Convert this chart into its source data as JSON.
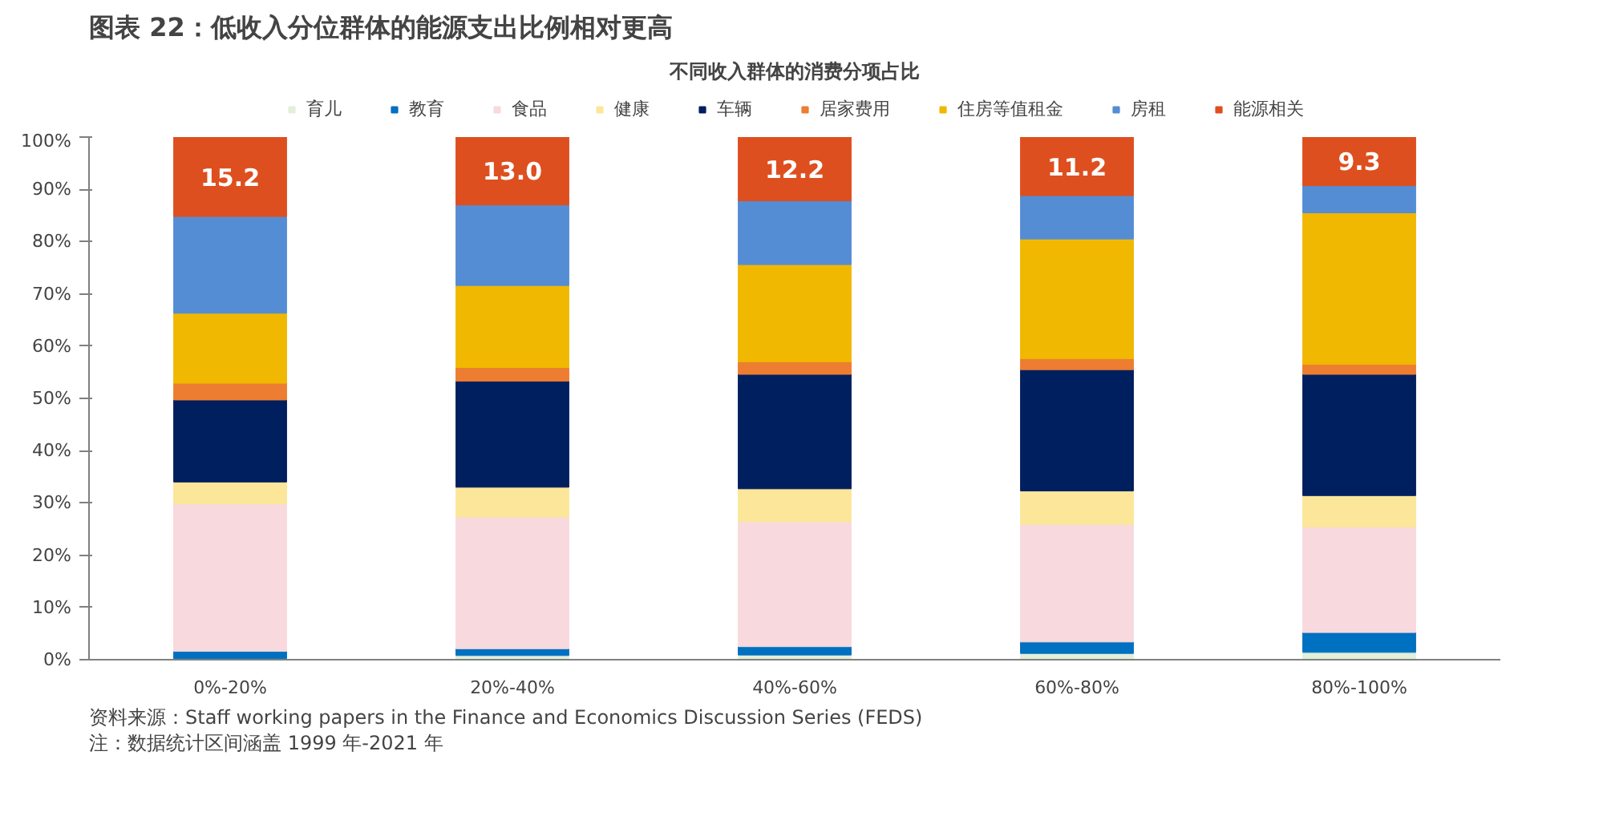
{
  "chart_data": {
    "type": "bar",
    "stacked": true,
    "title": "图表 22：低收入分位群体的能源支出比例相对更高",
    "subtitle": "不同收入群体的消费分项占比",
    "categories": [
      "0%-20%",
      "20%-40%",
      "40%-60%",
      "60%-80%",
      "80%-100%"
    ],
    "series": [
      {
        "name": "育儿",
        "color": "#e2efda",
        "values": [
          0.2,
          0.8,
          0.9,
          1.2,
          1.4
        ]
      },
      {
        "name": "教育",
        "color": "#0070c0",
        "values": [
          1.4,
          1.3,
          1.6,
          2.2,
          3.8
        ]
      },
      {
        "name": "食品",
        "color": "#f8d9de",
        "values": [
          28.2,
          25.2,
          23.9,
          22.5,
          20.2
        ]
      },
      {
        "name": "健康",
        "color": "#fce699",
        "values": [
          4.2,
          5.7,
          6.3,
          6.4,
          6.0
        ]
      },
      {
        "name": "车辆",
        "color": "#001f5f",
        "values": [
          15.7,
          20.3,
          21.9,
          23.2,
          23.2
        ]
      },
      {
        "name": "居家费用",
        "color": "#ed7d31",
        "values": [
          3.2,
          2.6,
          2.4,
          2.1,
          1.9
        ]
      },
      {
        "name": "住房等值租金",
        "color": "#f0b800",
        "values": [
          13.4,
          15.7,
          18.6,
          22.9,
          29.0
        ]
      },
      {
        "name": "房租",
        "color": "#548dd4",
        "values": [
          18.5,
          15.4,
          12.2,
          8.3,
          5.2
        ]
      },
      {
        "name": "能源相关",
        "color": "#de4f1f",
        "values": [
          15.2,
          13.0,
          12.2,
          11.2,
          9.3
        ],
        "value_labels": [
          "15.2",
          "13.0",
          "12.2",
          "11.2",
          "9.3"
        ]
      }
    ],
    "ylim": [
      0,
      100
    ],
    "yticks": [
      {
        "value": 0,
        "label": "0%"
      },
      {
        "value": 10,
        "label": "10%"
      },
      {
        "value": 20,
        "label": "20%"
      },
      {
        "value": 30,
        "label": "30%"
      },
      {
        "value": 40,
        "label": "40%"
      },
      {
        "value": 50,
        "label": "50%"
      },
      {
        "value": 60,
        "label": "60%"
      },
      {
        "value": 70,
        "label": "70%"
      },
      {
        "value": 80,
        "label": "80%"
      },
      {
        "value": 90,
        "label": "90%"
      },
      {
        "value": 100,
        "label": "100%"
      }
    ],
    "grid": false,
    "legend": "top",
    "annotations": [
      "资料来源：Staff working papers in the Finance and Economics Discussion Series (FEDS)",
      "注：数据统计区间涵盖 1999 年-2021 年"
    ]
  }
}
